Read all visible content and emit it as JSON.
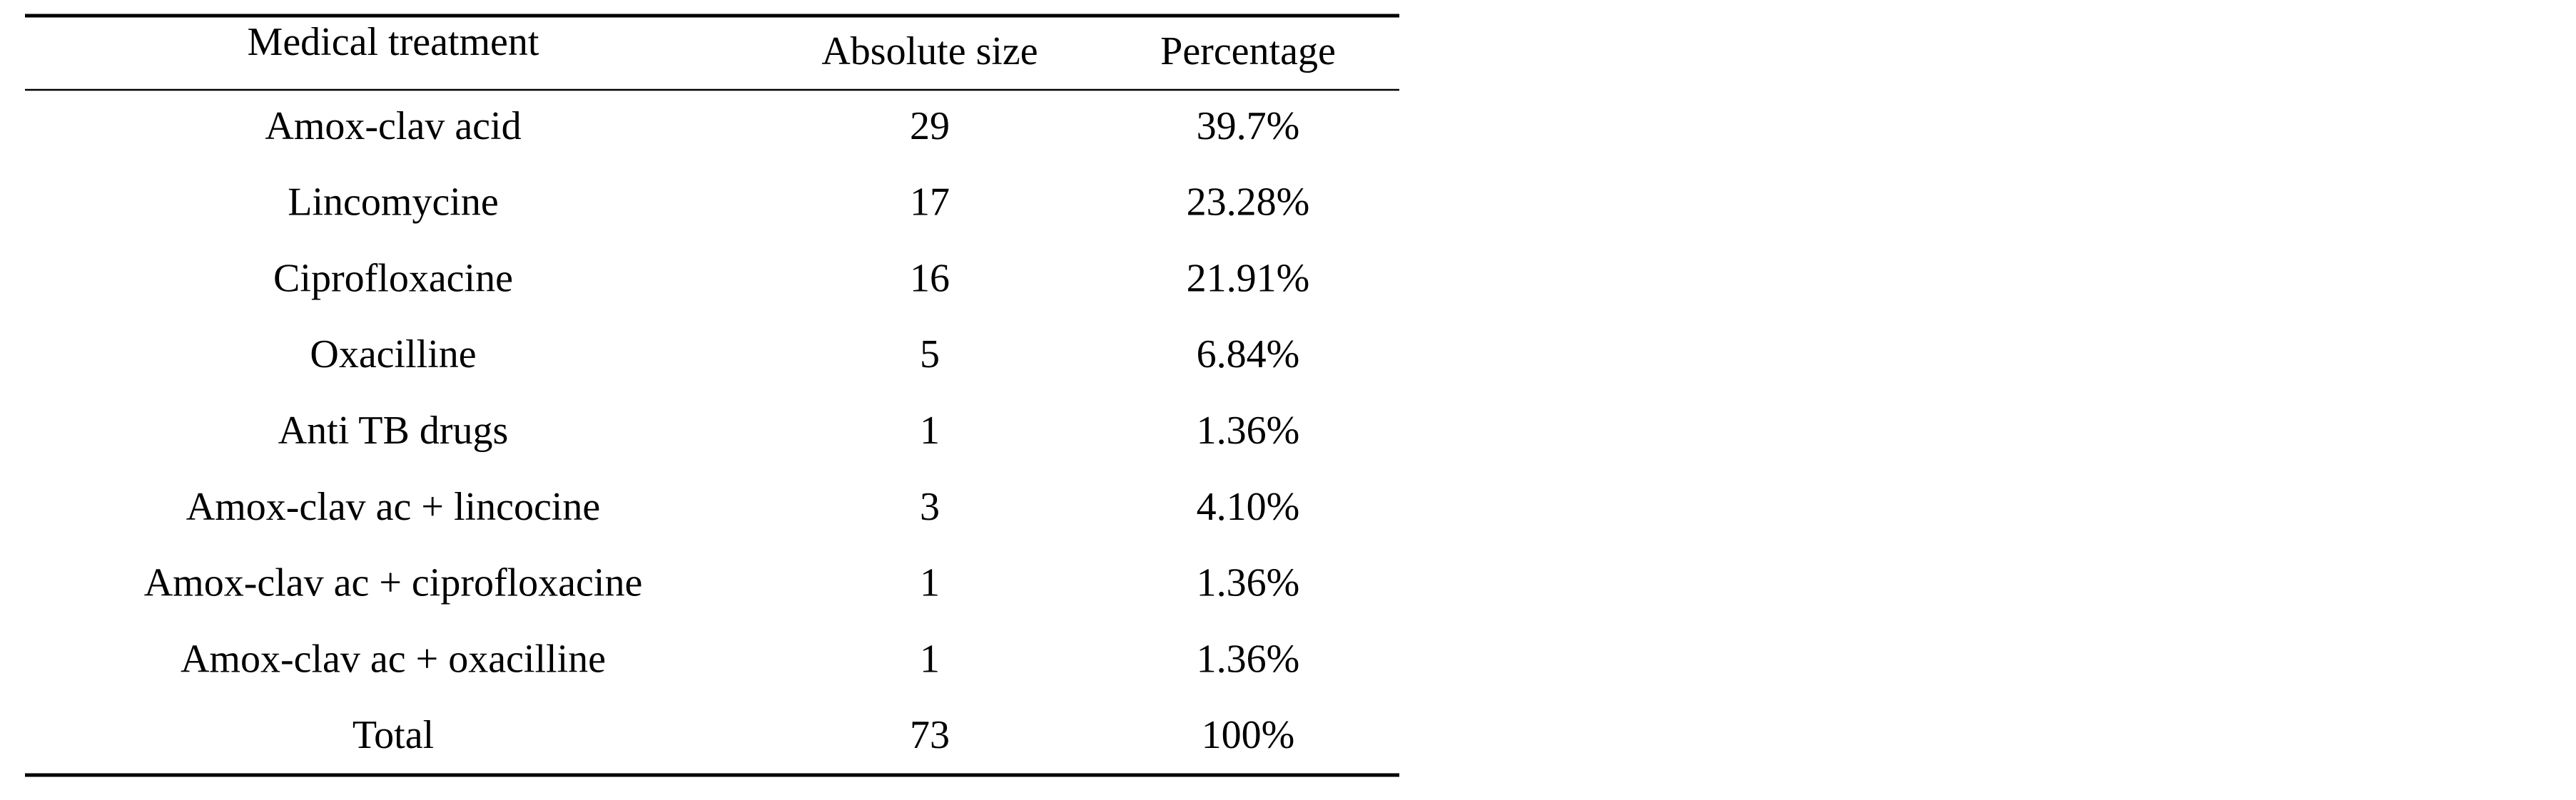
{
  "table": {
    "columns": [
      "Medical treatment",
      "Absolute size",
      "Percentage"
    ],
    "rows": [
      [
        "Amox-clav acid",
        29,
        "39.7%"
      ],
      [
        "Lincomycine",
        17,
        "23.28%"
      ],
      [
        "Ciprofloxacine",
        16,
        "21.91%"
      ],
      [
        "Oxacilline",
        5,
        "6.84%"
      ],
      [
        "Anti TB drugs",
        1,
        "1.36%"
      ],
      [
        "Amox-clav ac + lincocine",
        3,
        "4.10%"
      ],
      [
        "Amox-clav ac + ciprofloxacine",
        1,
        "1.36%"
      ],
      [
        "Amox-clav ac + oxacilline",
        1,
        "1.36%"
      ],
      [
        "Total",
        73,
        "100%"
      ]
    ]
  }
}
